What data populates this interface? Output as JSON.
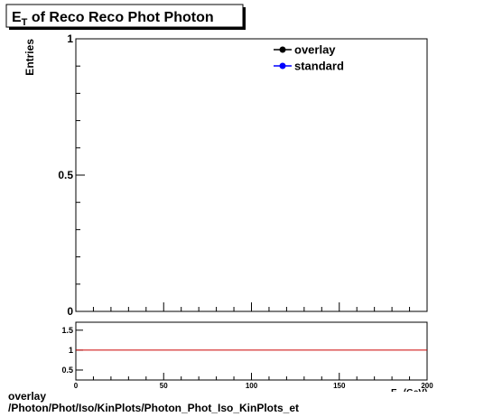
{
  "chart_data": [
    {
      "type": "line",
      "title": {
        "main": "E",
        "sub": "T",
        "rest": " of Reco Reco Phot Photon"
      },
      "ylabel": "Entries",
      "xlim": [
        0,
        200
      ],
      "xticks": [
        0,
        50,
        100,
        150,
        200
      ],
      "ylim": [
        0,
        1
      ],
      "yticks": [
        0,
        0.5,
        1
      ],
      "series": [
        {
          "name": "overlay",
          "color": "#000000",
          "values": []
        },
        {
          "name": "standard",
          "color": "#0000ff",
          "values": []
        }
      ],
      "legend": "top-right"
    },
    {
      "type": "line",
      "x_label": {
        "main": "E",
        "sub": "T",
        "rest": " (GeV)"
      },
      "xlim": [
        0,
        200
      ],
      "xticks": [
        0,
        50,
        100,
        150,
        200
      ],
      "ylim": [
        0.25,
        1.7
      ],
      "yticks": [
        0.5,
        1,
        1.5
      ],
      "reference_line": {
        "value": 1,
        "color": "#cc0000"
      }
    }
  ],
  "footer": {
    "line1": "overlay",
    "line2": "/Photon/Phot/Iso/KinPlots/Photon_Phot_Iso_KinPlots_et"
  }
}
